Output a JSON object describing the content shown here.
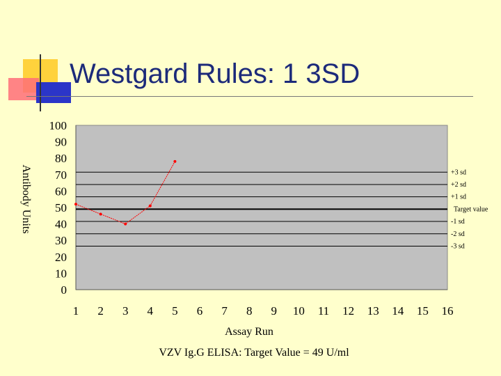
{
  "slide": {
    "title": "Westgard Rules: 1 3SD",
    "caption": "VZV Ig.G ELISA: Target Value = 49 U/ml"
  },
  "colors": {
    "background": "#ffffcc",
    "title": "#1c2a7a",
    "plot_area": "#c0c0c0",
    "series": "#ff0000",
    "deco_yellow": "#ffd23c",
    "deco_red": "#ff6e78",
    "deco_blue": "#2b35c8"
  },
  "chart_data": {
    "type": "line",
    "title": "",
    "xlabel": "Assay Run",
    "ylabel": "Antibody Units",
    "x": [
      1,
      2,
      3,
      4,
      5
    ],
    "categories": [
      "1",
      "2",
      "3",
      "4",
      "5",
      "6",
      "7",
      "8",
      "9",
      "10",
      "11",
      "12",
      "13",
      "14",
      "15",
      "16"
    ],
    "xlim": [
      1,
      16
    ],
    "ylim": [
      0,
      100
    ],
    "y_ticks": [
      0,
      10,
      20,
      30,
      40,
      50,
      60,
      70,
      80,
      90,
      100
    ],
    "series": [
      {
        "name": "",
        "values": [
          52,
          46,
          40,
          51,
          78
        ]
      }
    ],
    "reference_lines": [
      {
        "label": "+3 sd",
        "value": 71.5
      },
      {
        "label": "+2 sd",
        "value": 64
      },
      {
        "label": "+1 sd",
        "value": 56.5
      },
      {
        "label": "Target value",
        "value": 49
      },
      {
        "label": "-1 sd",
        "value": 41.5
      },
      {
        "label": "-2 sd",
        "value": 34
      },
      {
        "label": "-3 sd",
        "value": 26.5
      }
    ],
    "grid": false,
    "legend": "right"
  }
}
